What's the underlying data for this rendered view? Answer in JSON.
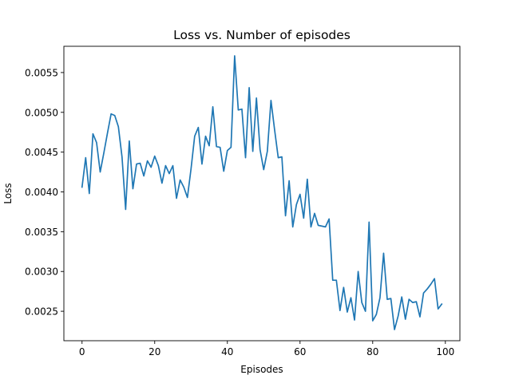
{
  "chart_data": {
    "type": "line",
    "title": "Loss vs. Number of episodes",
    "xlabel": "Episodes",
    "ylabel": "Loss",
    "xlim": [
      -5,
      104
    ],
    "ylim": [
      0.00213,
      0.00583
    ],
    "x_ticks": [
      0,
      20,
      40,
      60,
      80,
      100
    ],
    "x_tick_labels": [
      "0",
      "20",
      "40",
      "60",
      "80",
      "100"
    ],
    "y_ticks": [
      0.0025,
      0.003,
      0.0035,
      0.004,
      0.0045,
      0.005,
      0.0055
    ],
    "y_tick_labels": [
      "0.0025",
      "0.0030",
      "0.0035",
      "0.0040",
      "0.0045",
      "0.0050",
      "0.0055"
    ],
    "grid": false,
    "line_color": "#1f77b4",
    "series": [
      {
        "x": [
          0,
          1,
          2,
          3,
          4,
          5,
          6,
          7,
          8,
          9,
          10,
          11,
          12,
          13,
          14,
          15,
          16,
          17,
          18,
          19,
          20,
          21,
          22,
          23,
          24,
          25,
          26,
          27,
          28,
          29,
          30,
          31,
          32,
          33,
          34,
          35,
          36,
          37,
          38,
          39,
          40,
          41,
          42,
          43,
          44,
          45,
          46,
          47,
          48,
          49,
          50,
          51,
          52,
          53,
          54,
          55,
          56,
          57,
          58,
          59,
          60,
          61,
          62,
          63,
          64,
          65,
          66,
          67,
          68,
          69,
          70,
          71,
          72,
          73,
          74,
          75,
          76,
          77,
          78,
          79,
          80,
          81,
          82,
          83,
          84,
          85,
          86,
          87,
          88,
          89,
          90,
          91,
          92,
          93,
          94,
          95,
          96,
          97,
          98,
          99
        ],
        "values": [
          0.00406,
          0.00443,
          0.00398,
          0.00473,
          0.00462,
          0.00425,
          0.00449,
          0.00474,
          0.00498,
          0.00496,
          0.00482,
          0.00444,
          0.00378,
          0.00464,
          0.00404,
          0.00435,
          0.00436,
          0.0042,
          0.00439,
          0.00431,
          0.00445,
          0.00433,
          0.00411,
          0.00433,
          0.00423,
          0.00433,
          0.00392,
          0.00415,
          0.00406,
          0.00393,
          0.00429,
          0.0047,
          0.00481,
          0.00435,
          0.0047,
          0.00458,
          0.00507,
          0.00457,
          0.00456,
          0.00426,
          0.00452,
          0.00456,
          0.00571,
          0.00503,
          0.00504,
          0.00443,
          0.00531,
          0.00451,
          0.00518,
          0.00453,
          0.00428,
          0.00451,
          0.00515,
          0.00478,
          0.00443,
          0.00444,
          0.0037,
          0.00414,
          0.00356,
          0.00384,
          0.00397,
          0.00367,
          0.00416,
          0.00356,
          0.00373,
          0.00358,
          0.00357,
          0.00356,
          0.00366,
          0.00289,
          0.00289,
          0.00251,
          0.0028,
          0.00249,
          0.00267,
          0.00239,
          0.003,
          0.00261,
          0.0025,
          0.00362,
          0.00238,
          0.00246,
          0.00267,
          0.00323,
          0.00265,
          0.00266,
          0.00227,
          0.00244,
          0.00268,
          0.0024,
          0.00265,
          0.00261,
          0.00262,
          0.00243,
          0.00273,
          0.00278,
          0.00284,
          0.00291,
          0.00253,
          0.00259
        ]
      }
    ]
  }
}
